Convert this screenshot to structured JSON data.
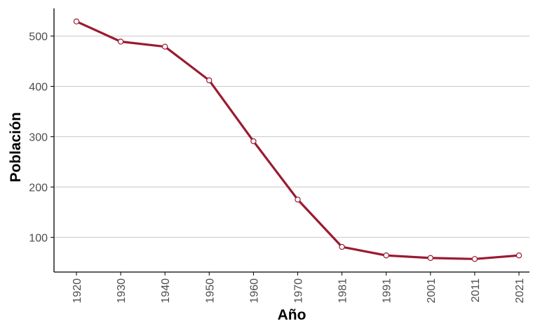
{
  "chart_data": {
    "type": "line",
    "title": "",
    "xlabel": "Año",
    "ylabel": "Población",
    "categories": [
      "1920",
      "1930",
      "1940",
      "1950",
      "1960",
      "1970",
      "1981",
      "1991",
      "2001",
      "2011",
      "2021"
    ],
    "series": [
      {
        "values": [
          529,
          489,
          479,
          412,
          291,
          175,
          81,
          64,
          59,
          57,
          64
        ]
      }
    ],
    "y_ticks": [
      100,
      200,
      300,
      400,
      500
    ],
    "ylim": [
      31,
      555
    ],
    "grid": "horizontal major gridlines",
    "legend": "none",
    "markers": "hollow circles",
    "colors": {
      "line": "#9b1b30",
      "grid": "#c8c8c8",
      "axis": "#000000",
      "tick_text": "#4d4d4d"
    }
  }
}
